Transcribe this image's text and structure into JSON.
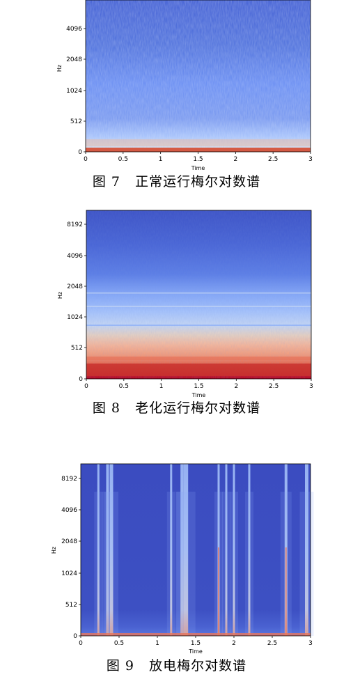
{
  "figures": [
    {
      "caption": "图 7   正常运行梅尔对数谱",
      "chart_data": {
        "type": "heatmap",
        "title": "",
        "xlabel": "Time",
        "ylabel": "Hz",
        "x_ticks": [
          "0",
          "0.5",
          "1",
          "1.5",
          "2",
          "2.5",
          "3"
        ],
        "y_ticks": [
          "0",
          "512",
          "1024",
          "2048",
          "4096"
        ],
        "xlim": [
          0,
          3
        ],
        "colormap": "coolwarm",
        "description_values": {
          "low_band_intensity": "high",
          "upper_band_intensity": "low"
        }
      }
    },
    {
      "caption": "图 8   老化运行梅尔对数谱",
      "chart_data": {
        "type": "heatmap",
        "title": "",
        "xlabel": "Time",
        "ylabel": "Hz",
        "x_ticks": [
          "0",
          "0.5",
          "1",
          "1.5",
          "2",
          "2.5",
          "3"
        ],
        "y_ticks": [
          "0",
          "512",
          "1024",
          "2048",
          "4096",
          "8192"
        ],
        "xlim": [
          0,
          3
        ],
        "colormap": "coolwarm"
      }
    },
    {
      "caption": "图 9   放电梅尔对数谱",
      "chart_data": {
        "type": "heatmap",
        "title": "",
        "xlabel": "Time",
        "ylabel": "Hz",
        "x_ticks": [
          "0",
          "0.5",
          "1",
          "1.5",
          "2",
          "2.5",
          "3"
        ],
        "y_ticks": [
          "0",
          "512",
          "1024",
          "2048",
          "4096",
          "8192"
        ],
        "xlim": [
          0,
          3
        ],
        "colormap": "coolwarm",
        "discharge_times": [
          0.23,
          0.35,
          0.4,
          1.18,
          1.32,
          1.37,
          1.8,
          1.9,
          2.0,
          2.2,
          2.68,
          2.95
        ]
      }
    }
  ],
  "colors": {
    "deep_blue": "#3b4cc0",
    "mid_blue": "#6f92f3",
    "light_blue": "#aac7fd",
    "neutral": "#dddcdc",
    "light_red": "#f7b89c",
    "red": "#e7745b",
    "deep_red": "#b40426"
  }
}
